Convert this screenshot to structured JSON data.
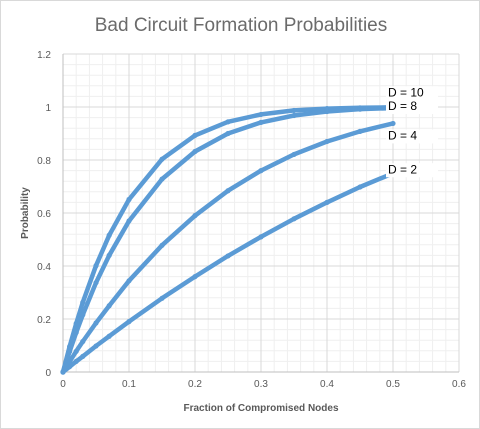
{
  "chart_data": {
    "type": "line",
    "title": "Bad Circuit Formation Probabilities",
    "xlabel": "Fraction of Compromised  Nodes",
    "ylabel": "Probability",
    "xlim": [
      0,
      0.6
    ],
    "ylim": [
      0,
      1.2
    ],
    "x_ticks": [
      "0",
      "0.1",
      "0.2",
      "0.3",
      "0.4",
      "0.5",
      "0.6"
    ],
    "y_ticks": [
      "0",
      "0.2",
      "0.4",
      "0.6",
      "0.8",
      "1",
      "1.2"
    ],
    "grid": true,
    "minor_grid": true,
    "legend": "none",
    "series_color": "#5b9bd5",
    "series": [
      {
        "name": "D = 10",
        "x": [
          0,
          0.01,
          0.02,
          0.03,
          0.05,
          0.07,
          0.1,
          0.15,
          0.2,
          0.25,
          0.3,
          0.35,
          0.4,
          0.45,
          0.5
        ],
        "values": [
          0,
          0.096,
          0.183,
          0.263,
          0.401,
          0.516,
          0.651,
          0.803,
          0.893,
          0.944,
          0.972,
          0.987,
          0.994,
          0.997,
          0.999
        ]
      },
      {
        "name": "D = 8",
        "x": [
          0,
          0.01,
          0.02,
          0.03,
          0.05,
          0.07,
          0.1,
          0.15,
          0.2,
          0.25,
          0.3,
          0.35,
          0.4,
          0.45,
          0.5
        ],
        "values": [
          0,
          0.077,
          0.149,
          0.216,
          0.337,
          0.44,
          0.57,
          0.728,
          0.832,
          0.9,
          0.942,
          0.968,
          0.983,
          0.992,
          0.996
        ]
      },
      {
        "name": "D = 4",
        "x": [
          0,
          0.01,
          0.02,
          0.03,
          0.05,
          0.07,
          0.1,
          0.15,
          0.2,
          0.25,
          0.3,
          0.35,
          0.4,
          0.45,
          0.5
        ],
        "values": [
          0,
          0.039,
          0.078,
          0.115,
          0.185,
          0.25,
          0.344,
          0.478,
          0.59,
          0.684,
          0.76,
          0.821,
          0.87,
          0.908,
          0.938
        ]
      },
      {
        "name": "D = 2",
        "x": [
          0,
          0.01,
          0.02,
          0.03,
          0.05,
          0.07,
          0.1,
          0.15,
          0.2,
          0.25,
          0.3,
          0.35,
          0.4,
          0.45,
          0.5
        ],
        "values": [
          0,
          0.02,
          0.04,
          0.059,
          0.098,
          0.135,
          0.19,
          0.278,
          0.36,
          0.438,
          0.51,
          0.578,
          0.64,
          0.698,
          0.75
        ]
      }
    ]
  }
}
